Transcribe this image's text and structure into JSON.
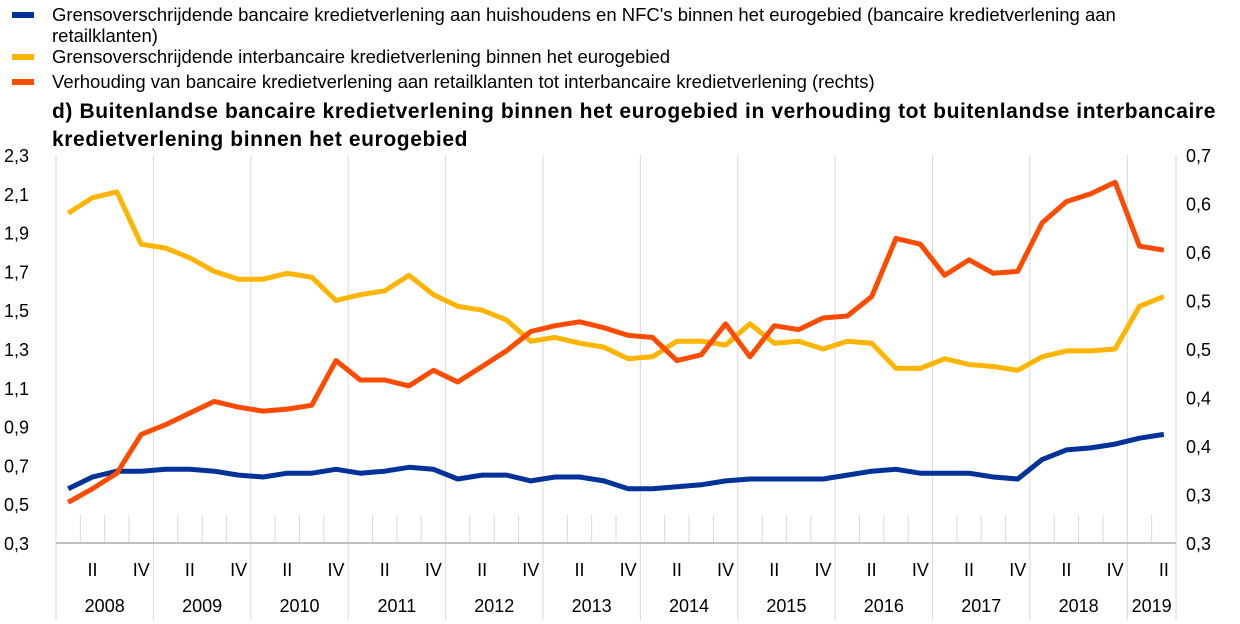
{
  "chart_data": {
    "type": "line",
    "title": "d) Buitenlandse bancaire kredietverlening binnen het eurogebied in verhouding tot buitenlandse interbancaire kredietverlening binnen het eurogebied",
    "x_start": "2008 Q1",
    "x_end": "2019 Q2",
    "years": [
      "2008",
      "2009",
      "2010",
      "2011",
      "2012",
      "2013",
      "2014",
      "2015",
      "2016",
      "2017",
      "2018",
      "2019"
    ],
    "quarter_labels": [
      "II",
      "IV"
    ],
    "left_axis": {
      "ylim": [
        0.3,
        2.3
      ],
      "ticks": [
        "2,3",
        "2,1",
        "1,9",
        "1,7",
        "1,5",
        "1,3",
        "1,1",
        "0,9",
        "0,7",
        "0,5",
        "0,3"
      ]
    },
    "right_axis": {
      "ylim": [
        0.3,
        0.7
      ],
      "ticks": [
        "0,7",
        "0,6",
        "0,6",
        "0,5",
        "0,5",
        "0,4",
        "0,4",
        "0,3",
        "0,3"
      ]
    },
    "series": [
      {
        "name": "Grensoverschrijdende bancaire kredietverlening aan huishoudens en NFC's binnen het eurogebied (bancaire kredietverlening aan retailklanten)",
        "color": "#003299",
        "axis": "left",
        "values": [
          0.58,
          0.64,
          0.67,
          0.67,
          0.68,
          0.68,
          0.67,
          0.65,
          0.64,
          0.66,
          0.66,
          0.68,
          0.66,
          0.67,
          0.69,
          0.68,
          0.63,
          0.65,
          0.65,
          0.62,
          0.64,
          0.64,
          0.62,
          0.58,
          0.58,
          0.59,
          0.6,
          0.62,
          0.63,
          0.63,
          0.63,
          0.63,
          0.65,
          0.67,
          0.68,
          0.66,
          0.66,
          0.66,
          0.64,
          0.63,
          0.73,
          0.78,
          0.79,
          0.81,
          0.84,
          0.86
        ]
      },
      {
        "name": "Grensoverschrijdende interbancaire kredietverlening binnen het eurogebied",
        "color": "#FFB400",
        "axis": "left",
        "values": [
          2.0,
          2.08,
          2.11,
          1.84,
          1.82,
          1.77,
          1.7,
          1.66,
          1.66,
          1.69,
          1.67,
          1.55,
          1.58,
          1.6,
          1.68,
          1.58,
          1.52,
          1.5,
          1.45,
          1.34,
          1.36,
          1.33,
          1.31,
          1.25,
          1.26,
          1.34,
          1.34,
          1.32,
          1.43,
          1.33,
          1.34,
          1.3,
          1.34,
          1.33,
          1.2,
          1.2,
          1.25,
          1.22,
          1.21,
          1.19,
          1.26,
          1.29,
          1.29,
          1.3,
          1.52,
          1.57
        ]
      },
      {
        "name": "Verhouding van bancaire kredietverlening aan retailklanten tot interbancaire kredietverlening (rechts)",
        "color": "#FF4B00",
        "axis": "right",
        "values": [
          0.342,
          0.356,
          0.372,
          0.412,
          0.422,
          0.434,
          0.446,
          0.44,
          0.436,
          0.438,
          0.442,
          0.488,
          0.468,
          0.468,
          0.462,
          0.478,
          0.466,
          0.482,
          0.498,
          0.518,
          0.524,
          0.528,
          0.522,
          0.514,
          0.512,
          0.488,
          0.494,
          0.526,
          0.492,
          0.524,
          0.52,
          0.532,
          0.534,
          0.554,
          0.614,
          0.608,
          0.576,
          0.592,
          0.578,
          0.58,
          0.63,
          0.652,
          0.66,
          0.672,
          0.606,
          0.602
        ]
      }
    ],
    "legend": "top-left",
    "grid": false
  }
}
